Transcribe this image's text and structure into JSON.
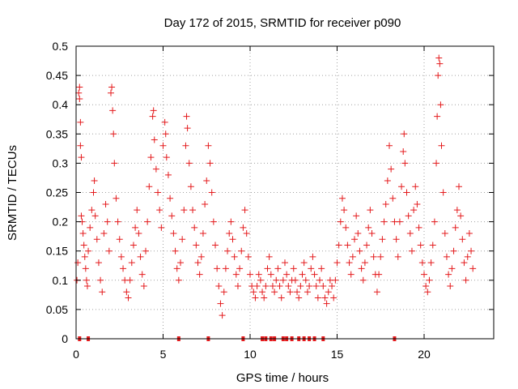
{
  "chart_data": {
    "type": "scatter",
    "title": "Day 172 of 2015, SRMTID for receiver p090",
    "xlabel": "GPS time / hours",
    "ylabel": "SRMTID / TECUs",
    "xlim": [
      0,
      24
    ],
    "ylim": [
      0,
      0.5
    ],
    "x_ticks": [
      0,
      5,
      10,
      15,
      20
    ],
    "x_tick_labels": [
      "0",
      "5",
      "10",
      "15",
      "20"
    ],
    "y_ticks": [
      0,
      0.05,
      0.1,
      0.15,
      0.2,
      0.25,
      0.3,
      0.35,
      0.4,
      0.45,
      0.5
    ],
    "y_tick_labels": [
      "0",
      "0.05",
      "0.1",
      "0.15",
      "0.2",
      "0.25",
      "0.3",
      "0.35",
      "0.4",
      "0.45",
      "0.5"
    ],
    "grid": true,
    "marker": "plus",
    "series": [
      {
        "name": "SRMTID",
        "color": "#e41a1c",
        "points": [
          [
            0.05,
            0.1
          ],
          [
            0.1,
            0.13
          ],
          [
            0.15,
            0.42
          ],
          [
            0.2,
            0.43
          ],
          [
            0.2,
            0.41
          ],
          [
            0.25,
            0.37
          ],
          [
            0.25,
            0.33
          ],
          [
            0.3,
            0.31
          ],
          [
            0.3,
            0.21
          ],
          [
            0.35,
            0.2
          ],
          [
            0.4,
            0.18
          ],
          [
            0.45,
            0.16
          ],
          [
            0.5,
            0.14
          ],
          [
            0.55,
            0.12
          ],
          [
            0.6,
            0.1
          ],
          [
            0.65,
            0.09
          ],
          [
            0.7,
            0.15
          ],
          [
            0.8,
            0.19
          ],
          [
            0.9,
            0.22
          ],
          [
            1.0,
            0.25
          ],
          [
            1.05,
            0.27
          ],
          [
            1.1,
            0.21
          ],
          [
            1.2,
            0.17
          ],
          [
            1.3,
            0.13
          ],
          [
            1.4,
            0.1
          ],
          [
            1.5,
            0.08
          ],
          [
            1.6,
            0.18
          ],
          [
            1.7,
            0.23
          ],
          [
            1.8,
            0.2
          ],
          [
            1.9,
            0.15
          ],
          [
            2.0,
            0.42
          ],
          [
            2.05,
            0.43
          ],
          [
            2.1,
            0.39
          ],
          [
            2.15,
            0.35
          ],
          [
            2.2,
            0.3
          ],
          [
            2.3,
            0.24
          ],
          [
            2.4,
            0.2
          ],
          [
            2.5,
            0.17
          ],
          [
            2.6,
            0.14
          ],
          [
            2.7,
            0.12
          ],
          [
            2.8,
            0.1
          ],
          [
            2.9,
            0.08
          ],
          [
            3.0,
            0.07
          ],
          [
            3.1,
            0.1
          ],
          [
            3.2,
            0.13
          ],
          [
            3.3,
            0.16
          ],
          [
            3.4,
            0.19
          ],
          [
            3.5,
            0.22
          ],
          [
            3.6,
            0.18
          ],
          [
            3.7,
            0.14
          ],
          [
            3.8,
            0.11
          ],
          [
            3.9,
            0.09
          ],
          [
            4.0,
            0.15
          ],
          [
            4.1,
            0.2
          ],
          [
            4.2,
            0.26
          ],
          [
            4.3,
            0.31
          ],
          [
            4.4,
            0.38
          ],
          [
            4.45,
            0.39
          ],
          [
            4.5,
            0.34
          ],
          [
            4.6,
            0.29
          ],
          [
            4.7,
            0.25
          ],
          [
            4.8,
            0.22
          ],
          [
            4.9,
            0.19
          ],
          [
            5.0,
            0.33
          ],
          [
            5.1,
            0.37
          ],
          [
            5.15,
            0.35
          ],
          [
            5.2,
            0.31
          ],
          [
            5.3,
            0.28
          ],
          [
            5.4,
            0.24
          ],
          [
            5.5,
            0.21
          ],
          [
            5.6,
            0.18
          ],
          [
            5.7,
            0.15
          ],
          [
            5.8,
            0.12
          ],
          [
            5.9,
            0.1
          ],
          [
            6.0,
            0.13
          ],
          [
            6.1,
            0.17
          ],
          [
            6.2,
            0.22
          ],
          [
            6.3,
            0.33
          ],
          [
            6.35,
            0.38
          ],
          [
            6.4,
            0.36
          ],
          [
            6.5,
            0.3
          ],
          [
            6.6,
            0.26
          ],
          [
            6.7,
            0.22
          ],
          [
            6.8,
            0.19
          ],
          [
            6.9,
            0.16
          ],
          [
            7.0,
            0.13
          ],
          [
            7.1,
            0.11
          ],
          [
            7.2,
            0.14
          ],
          [
            7.3,
            0.18
          ],
          [
            7.4,
            0.23
          ],
          [
            7.5,
            0.27
          ],
          [
            7.6,
            0.33
          ],
          [
            7.7,
            0.3
          ],
          [
            7.8,
            0.25
          ],
          [
            7.9,
            0.2
          ],
          [
            8.0,
            0.16
          ],
          [
            8.1,
            0.12
          ],
          [
            8.2,
            0.09
          ],
          [
            8.3,
            0.06
          ],
          [
            8.4,
            0.04
          ],
          [
            8.5,
            0.08
          ],
          [
            8.6,
            0.12
          ],
          [
            8.7,
            0.15
          ],
          [
            8.8,
            0.18
          ],
          [
            8.9,
            0.2
          ],
          [
            9.0,
            0.17
          ],
          [
            9.1,
            0.14
          ],
          [
            9.2,
            0.11
          ],
          [
            9.3,
            0.09
          ],
          [
            9.4,
            0.12
          ],
          [
            9.5,
            0.15
          ],
          [
            9.6,
            0.19
          ],
          [
            9.7,
            0.22
          ],
          [
            9.8,
            0.18
          ],
          [
            9.9,
            0.14
          ],
          [
            10.0,
            0.11
          ],
          [
            10.1,
            0.09
          ],
          [
            10.2,
            0.08
          ],
          [
            10.3,
            0.07
          ],
          [
            10.4,
            0.09
          ],
          [
            10.5,
            0.11
          ],
          [
            10.6,
            0.1
          ],
          [
            10.7,
            0.08
          ],
          [
            10.8,
            0.07
          ],
          [
            10.9,
            0.09
          ],
          [
            11.0,
            0.12
          ],
          [
            11.1,
            0.14
          ],
          [
            11.2,
            0.11
          ],
          [
            11.3,
            0.09
          ],
          [
            11.4,
            0.08
          ],
          [
            11.5,
            0.1
          ],
          [
            11.6,
            0.12
          ],
          [
            11.7,
            0.09
          ],
          [
            11.8,
            0.07
          ],
          [
            11.9,
            0.1
          ],
          [
            12.0,
            0.13
          ],
          [
            12.1,
            0.11
          ],
          [
            12.2,
            0.09
          ],
          [
            12.3,
            0.08
          ],
          [
            12.4,
            0.1
          ],
          [
            12.5,
            0.12
          ],
          [
            12.6,
            0.1
          ],
          [
            12.7,
            0.08
          ],
          [
            12.8,
            0.07
          ],
          [
            12.9,
            0.09
          ],
          [
            13.0,
            0.11
          ],
          [
            13.1,
            0.13
          ],
          [
            13.2,
            0.1
          ],
          [
            13.3,
            0.08
          ],
          [
            13.4,
            0.09
          ],
          [
            13.5,
            0.12
          ],
          [
            13.6,
            0.14
          ],
          [
            13.7,
            0.11
          ],
          [
            13.8,
            0.09
          ],
          [
            13.9,
            0.07
          ],
          [
            14.0,
            0.1
          ],
          [
            14.1,
            0.12
          ],
          [
            14.2,
            0.09
          ],
          [
            14.3,
            0.07
          ],
          [
            14.4,
            0.06
          ],
          [
            14.5,
            0.08
          ],
          [
            14.6,
            0.1
          ],
          [
            14.7,
            0.09
          ],
          [
            14.8,
            0.07
          ],
          [
            14.9,
            0.1
          ],
          [
            15.0,
            0.13
          ],
          [
            15.1,
            0.16
          ],
          [
            15.2,
            0.2
          ],
          [
            15.3,
            0.24
          ],
          [
            15.4,
            0.22
          ],
          [
            15.5,
            0.19
          ],
          [
            15.6,
            0.16
          ],
          [
            15.7,
            0.13
          ],
          [
            15.8,
            0.11
          ],
          [
            15.9,
            0.14
          ],
          [
            16.0,
            0.17
          ],
          [
            16.1,
            0.21
          ],
          [
            16.2,
            0.18
          ],
          [
            16.3,
            0.15
          ],
          [
            16.4,
            0.12
          ],
          [
            16.5,
            0.1
          ],
          [
            16.6,
            0.13
          ],
          [
            16.7,
            0.16
          ],
          [
            16.8,
            0.19
          ],
          [
            16.9,
            0.22
          ],
          [
            17.0,
            0.18
          ],
          [
            17.1,
            0.14
          ],
          [
            17.2,
            0.11
          ],
          [
            17.3,
            0.08
          ],
          [
            17.4,
            0.11
          ],
          [
            17.5,
            0.14
          ],
          [
            17.6,
            0.17
          ],
          [
            17.7,
            0.2
          ],
          [
            17.8,
            0.23
          ],
          [
            17.9,
            0.27
          ],
          [
            18.0,
            0.33
          ],
          [
            18.1,
            0.29
          ],
          [
            18.2,
            0.24
          ],
          [
            18.3,
            0.2
          ],
          [
            18.4,
            0.17
          ],
          [
            18.5,
            0.14
          ],
          [
            18.6,
            0.2
          ],
          [
            18.7,
            0.26
          ],
          [
            18.8,
            0.32
          ],
          [
            18.85,
            0.35
          ],
          [
            18.9,
            0.3
          ],
          [
            19.0,
            0.25
          ],
          [
            19.1,
            0.21
          ],
          [
            19.2,
            0.18
          ],
          [
            19.3,
            0.15
          ],
          [
            19.4,
            0.22
          ],
          [
            19.5,
            0.26
          ],
          [
            19.6,
            0.23
          ],
          [
            19.7,
            0.19
          ],
          [
            19.8,
            0.16
          ],
          [
            19.9,
            0.13
          ],
          [
            20.0,
            0.11
          ],
          [
            20.1,
            0.09
          ],
          [
            20.2,
            0.08
          ],
          [
            20.3,
            0.1
          ],
          [
            20.4,
            0.13
          ],
          [
            20.5,
            0.16
          ],
          [
            20.6,
            0.2
          ],
          [
            20.7,
            0.3
          ],
          [
            20.75,
            0.38
          ],
          [
            20.8,
            0.45
          ],
          [
            20.85,
            0.48
          ],
          [
            20.9,
            0.47
          ],
          [
            20.95,
            0.4
          ],
          [
            21.0,
            0.33
          ],
          [
            21.1,
            0.25
          ],
          [
            21.2,
            0.18
          ],
          [
            21.3,
            0.14
          ],
          [
            21.4,
            0.11
          ],
          [
            21.5,
            0.09
          ],
          [
            21.6,
            0.12
          ],
          [
            21.7,
            0.15
          ],
          [
            21.8,
            0.19
          ],
          [
            21.9,
            0.22
          ],
          [
            22.0,
            0.26
          ],
          [
            22.1,
            0.21
          ],
          [
            22.2,
            0.17
          ],
          [
            22.3,
            0.13
          ],
          [
            22.4,
            0.1
          ],
          [
            22.5,
            0.14
          ],
          [
            22.6,
            0.18
          ],
          [
            22.7,
            0.15
          ],
          [
            22.8,
            0.12
          ]
        ]
      }
    ],
    "zero_markers_x": [
      0.2,
      0.7,
      5.9,
      7.6,
      9.6,
      10.7,
      10.9,
      11.2,
      11.4,
      11.9,
      12.1,
      12.4,
      12.8,
      13.1,
      13.4,
      13.7,
      14.2,
      18.3
    ]
  }
}
